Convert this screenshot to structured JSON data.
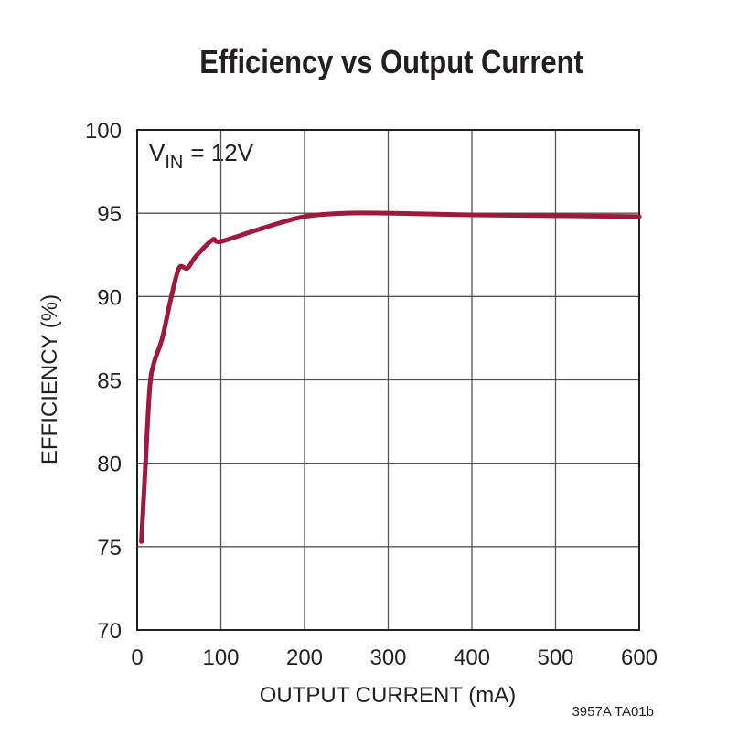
{
  "chart_data": {
    "type": "line",
    "title": "Efficiency vs Output Current",
    "xlabel": "OUTPUT CURRENT (mA)",
    "ylabel": "EFFICIENCY (%)",
    "annotation": [
      "V",
      "IN",
      "= 12V"
    ],
    "footnote": "3957A TA01b",
    "x": [
      5,
      10,
      15,
      20,
      30,
      40,
      50,
      60,
      70,
      90,
      100,
      150,
      200,
      250,
      300,
      400,
      500,
      600
    ],
    "values": [
      75.3,
      80,
      84.5,
      86,
      87.5,
      89.8,
      91.7,
      91.7,
      92.4,
      93.4,
      93.3,
      94.1,
      94.8,
      95.0,
      95.0,
      94.9,
      94.85,
      94.8
    ],
    "color": "#9e1a3c",
    "xlim": [
      0,
      600
    ],
    "xticks": [
      0,
      100,
      200,
      300,
      400,
      500,
      600
    ],
    "ylim": [
      70,
      100
    ],
    "yticks": [
      70,
      75,
      80,
      85,
      90,
      95,
      100
    ],
    "grid": true
  }
}
